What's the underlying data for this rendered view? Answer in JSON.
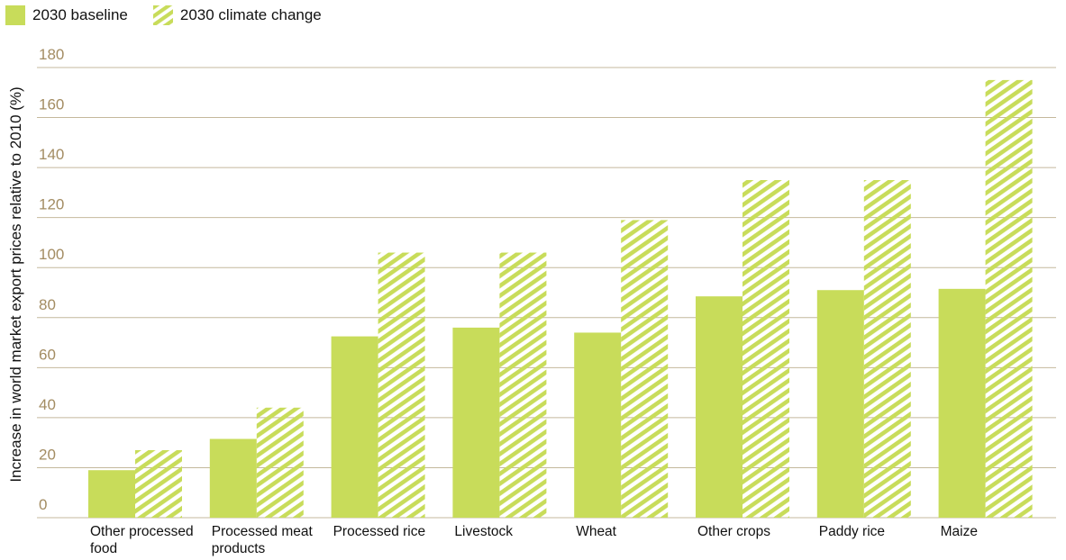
{
  "chart_data": {
    "type": "bar",
    "ylabel": "Increase in world market export prices relative to 2010 (%)",
    "ylim": [
      0,
      180
    ],
    "yticks": [
      0,
      20,
      40,
      60,
      80,
      100,
      120,
      140,
      160,
      180
    ],
    "grid": true,
    "legend_position": "top-left",
    "categories": [
      [
        "Other processed",
        "food"
      ],
      [
        "Processed meat",
        "products"
      ],
      [
        "Processed rice"
      ],
      [
        "Livestock"
      ],
      [
        "Wheat"
      ],
      [
        "Other crops"
      ],
      [
        "Paddy rice"
      ],
      [
        "Maize"
      ]
    ],
    "series": [
      {
        "name": "2030 baseline",
        "values": [
          19,
          31.5,
          72.5,
          76,
          74,
          88.5,
          91,
          91.5
        ],
        "color": "#c8dc5a",
        "pattern": "solid"
      },
      {
        "name": "2030 climate change",
        "values": [
          27,
          44,
          106,
          106,
          119,
          135,
          135,
          175
        ],
        "color": "#c8dc5a",
        "pattern": "hatched"
      }
    ],
    "colors": {
      "grid": "#c4b89c",
      "tick": "#a38c62",
      "bar": "#c8dc5a"
    }
  }
}
